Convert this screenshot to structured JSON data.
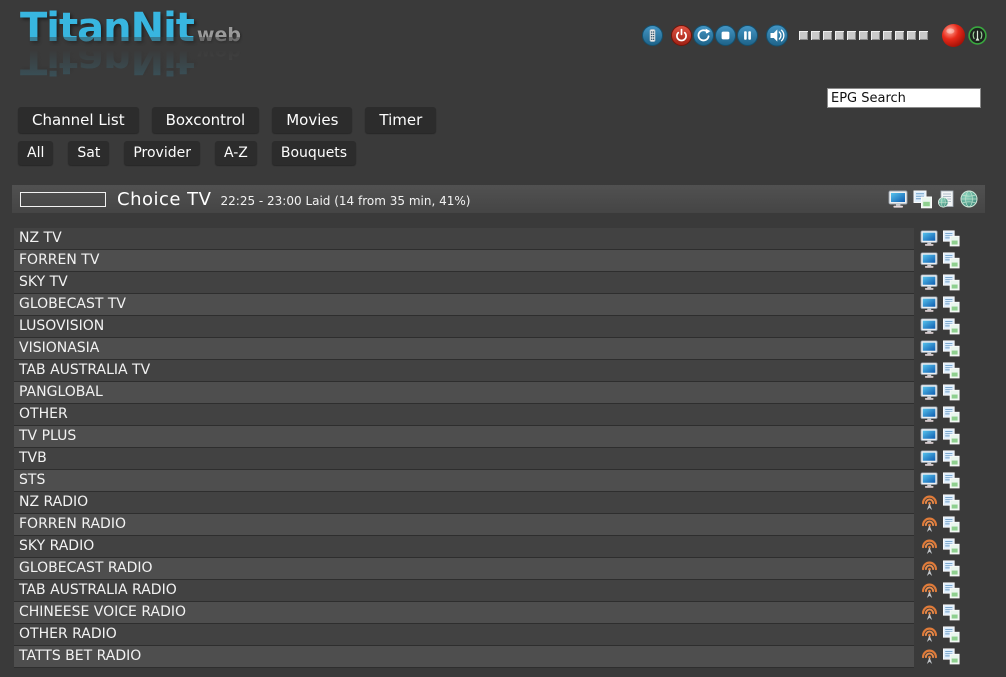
{
  "logo": {
    "brand": "TitanNit",
    "suffix": "web"
  },
  "toolbar": {
    "buttons": [
      {
        "name": "remote-button"
      },
      {
        "name": "power-button"
      },
      {
        "name": "reload-button"
      },
      {
        "name": "stop-button"
      },
      {
        "name": "pause-button"
      },
      {
        "name": "volume-button"
      }
    ],
    "volume_segments": 11,
    "indicators": [
      {
        "name": "record-indicator"
      },
      {
        "name": "stream-button"
      }
    ]
  },
  "search": {
    "value": "EPG Search"
  },
  "nav": {
    "tabs": [
      {
        "label": "Channel List"
      },
      {
        "label": "Boxcontrol"
      },
      {
        "label": "Movies"
      },
      {
        "label": "Timer"
      }
    ]
  },
  "filters": {
    "items": [
      "All",
      "Sat",
      "Provider",
      "A-Z",
      "Bouquets"
    ]
  },
  "now_playing": {
    "channel": "Choice TV",
    "epg_info": "22:25 - 23:00 Laid (14 from 35 min, 41%)",
    "progress_percent": 41,
    "icons": [
      "screen-icon",
      "epg-copy-icon",
      "web-epg-icon",
      "globe-icon"
    ]
  },
  "channels": {
    "rows": [
      {
        "name": "NZ TV",
        "type": "tv"
      },
      {
        "name": "FORREN TV",
        "type": "tv"
      },
      {
        "name": "SKY TV",
        "type": "tv"
      },
      {
        "name": "GLOBECAST TV",
        "type": "tv"
      },
      {
        "name": "LUSOVISION",
        "type": "tv"
      },
      {
        "name": "VISIONASIA",
        "type": "tv"
      },
      {
        "name": "TAB AUSTRALIA TV",
        "type": "tv"
      },
      {
        "name": "PANGLOBAL",
        "type": "tv"
      },
      {
        "name": "OTHER",
        "type": "tv"
      },
      {
        "name": "TV PLUS",
        "type": "tv"
      },
      {
        "name": "TVB",
        "type": "tv"
      },
      {
        "name": "STS",
        "type": "tv"
      },
      {
        "name": "NZ RADIO",
        "type": "radio"
      },
      {
        "name": "FORREN RADIO",
        "type": "radio"
      },
      {
        "name": "SKY RADIO",
        "type": "radio"
      },
      {
        "name": "GLOBECAST RADIO",
        "type": "radio"
      },
      {
        "name": "TAB AUSTRALIA RADIO",
        "type": "radio"
      },
      {
        "name": "CHINEESE VOICE RADIO",
        "type": "radio"
      },
      {
        "name": "OTHER RADIO",
        "type": "radio"
      },
      {
        "name": "TATTS BET RADIO",
        "type": "radio"
      }
    ]
  },
  "colors": {
    "background": "#3a3a3a",
    "accent_cyan": "#38b6e0",
    "accent_orange": "#e8820e",
    "button_blue": "#2a7ca8",
    "power_red": "#c23b28",
    "row_dark": "#424242",
    "row_light": "#4e4e4e"
  }
}
